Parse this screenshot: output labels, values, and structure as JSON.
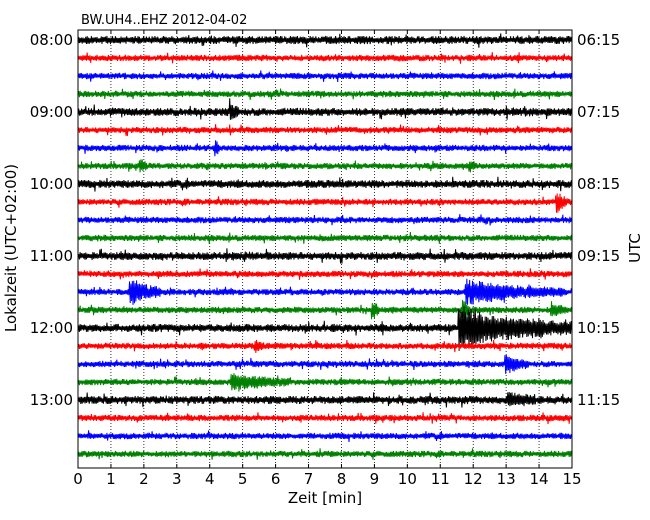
{
  "chart_data": {
    "type": "line",
    "title": "BW.UH4..EHZ 2012-04-02",
    "xlabel": "Zeit  [min]",
    "ylabel_left": "Lokalzeit (UTC+02:00)",
    "ylabel_right": "UTC",
    "xlim": [
      0,
      15
    ],
    "x_ticks": [
      "0",
      "1",
      "2",
      "3",
      "4",
      "5",
      "6",
      "7",
      "8",
      "9",
      "10",
      "11",
      "12",
      "13",
      "14",
      "15"
    ],
    "grid": "vertical dotted at each minute",
    "trace_colors": [
      "#000000",
      "#ff0000",
      "#0000ff",
      "#008000"
    ],
    "trace_count": 24,
    "trace_interval_min": 15,
    "left_tick_labels": [
      "08:00",
      "09:00",
      "10:00",
      "11:00",
      "12:00",
      "13:00"
    ],
    "right_tick_labels": [
      "06:15",
      "07:15",
      "08:15",
      "09:15",
      "10:15",
      "11:15"
    ],
    "events": [
      {
        "trace": 4,
        "x": 4.65,
        "amp": 1.6,
        "dur": 0.25
      },
      {
        "trace": 6,
        "x": 4.2,
        "amp": 1.3,
        "dur": 0.1
      },
      {
        "trace": 7,
        "x": 1.9,
        "amp": 1.1,
        "dur": 0.2
      },
      {
        "trace": 7,
        "x": 11.9,
        "amp": 1.0,
        "dur": 0.15
      },
      {
        "trace": 9,
        "x": 14.55,
        "amp": 1.8,
        "dur": 0.3
      },
      {
        "trace": 14,
        "x": 1.6,
        "amp": 2.6,
        "dur": 0.9
      },
      {
        "trace": 14,
        "x": 11.8,
        "amp": 2.2,
        "dur": 3.0
      },
      {
        "trace": 15,
        "x": 8.95,
        "amp": 1.5,
        "dur": 0.2
      },
      {
        "trace": 15,
        "x": 11.7,
        "amp": 1.9,
        "dur": 0.2
      },
      {
        "trace": 15,
        "x": 14.4,
        "amp": 1.2,
        "dur": 0.4
      },
      {
        "trace": 16,
        "x": 11.6,
        "amp": 4.0,
        "dur": 3.4
      },
      {
        "trace": 17,
        "x": 5.4,
        "amp": 1.0,
        "dur": 0.25
      },
      {
        "trace": 18,
        "x": 13.0,
        "amp": 1.6,
        "dur": 0.7
      },
      {
        "trace": 19,
        "x": 4.7,
        "amp": 1.4,
        "dur": 1.8
      },
      {
        "trace": 20,
        "x": 13.1,
        "amp": 1.2,
        "dur": 0.8
      }
    ]
  }
}
